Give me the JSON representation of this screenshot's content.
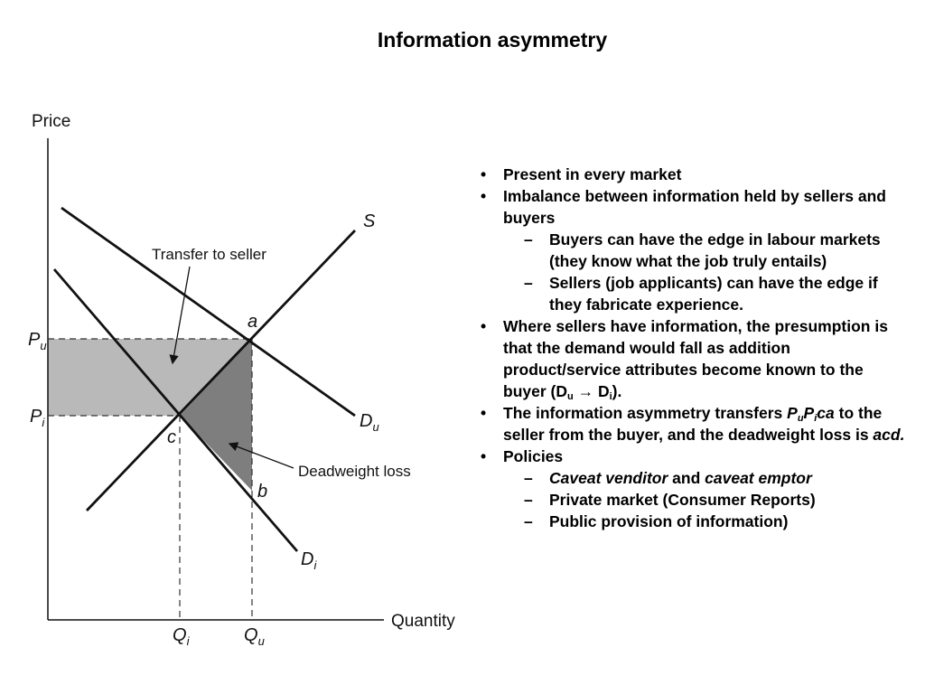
{
  "slide": {
    "title": "Information asymmetry"
  },
  "diagram": {
    "axes": {
      "y_label": "Price",
      "x_label": "Quantity"
    },
    "curves": {
      "supply": "S",
      "demand_uninformed": "D",
      "demand_uninformed_sub": "u",
      "demand_informed": "D",
      "demand_informed_sub": "i"
    },
    "points": {
      "a": "a",
      "b": "b",
      "c": "c"
    },
    "price_ticks": {
      "pu": "P",
      "pu_sub": "u",
      "pi": "P",
      "pi_sub": "i"
    },
    "quantity_ticks": {
      "qi": "Q",
      "qi_sub": "i",
      "qu": "Q",
      "qu_sub": "u"
    },
    "annotations": {
      "transfer": "Transfer to seller",
      "deadweight": "Deadweight loss"
    },
    "colors": {
      "transfer_fill": "#b9b9b9",
      "deadweight_fill": "#7e7e7e",
      "lines": "#111111"
    }
  },
  "bullets": {
    "b1": "Present in every market",
    "b2": "Imbalance between information held by sellers and buyers",
    "b2a": "Buyers can have the edge in labour markets (they know what the job truly entails)",
    "b2b": "Sellers (job applicants) can have the edge if they fabricate experience.",
    "b3_text": "Where sellers have information, the presumption is that the demand would fall as addition product/service attributes become known to the buyer (D",
    "b3_sub1": "u",
    "b3_arrow": " → D",
    "b3_sub2": "i",
    "b3_end": ").",
    "b4_text": "The information asymmetry transfers ",
    "b4_pu": "P",
    "b4_pu_sub": "u",
    "b4_pi": "P",
    "b4_pi_sub": "i",
    "b4_ca": "ca",
    "b4_mid": " to the seller from the buyer, and the deadweight loss is ",
    "b4_acd": "acd.",
    "b5": "Policies",
    "b5a_it1": "Caveat venditor",
    "b5a_and": " and ",
    "b5a_it2": "caveat emptor",
    "b5b": "Private market (Consumer Reports)",
    "b5c": "Public provision of information)"
  }
}
